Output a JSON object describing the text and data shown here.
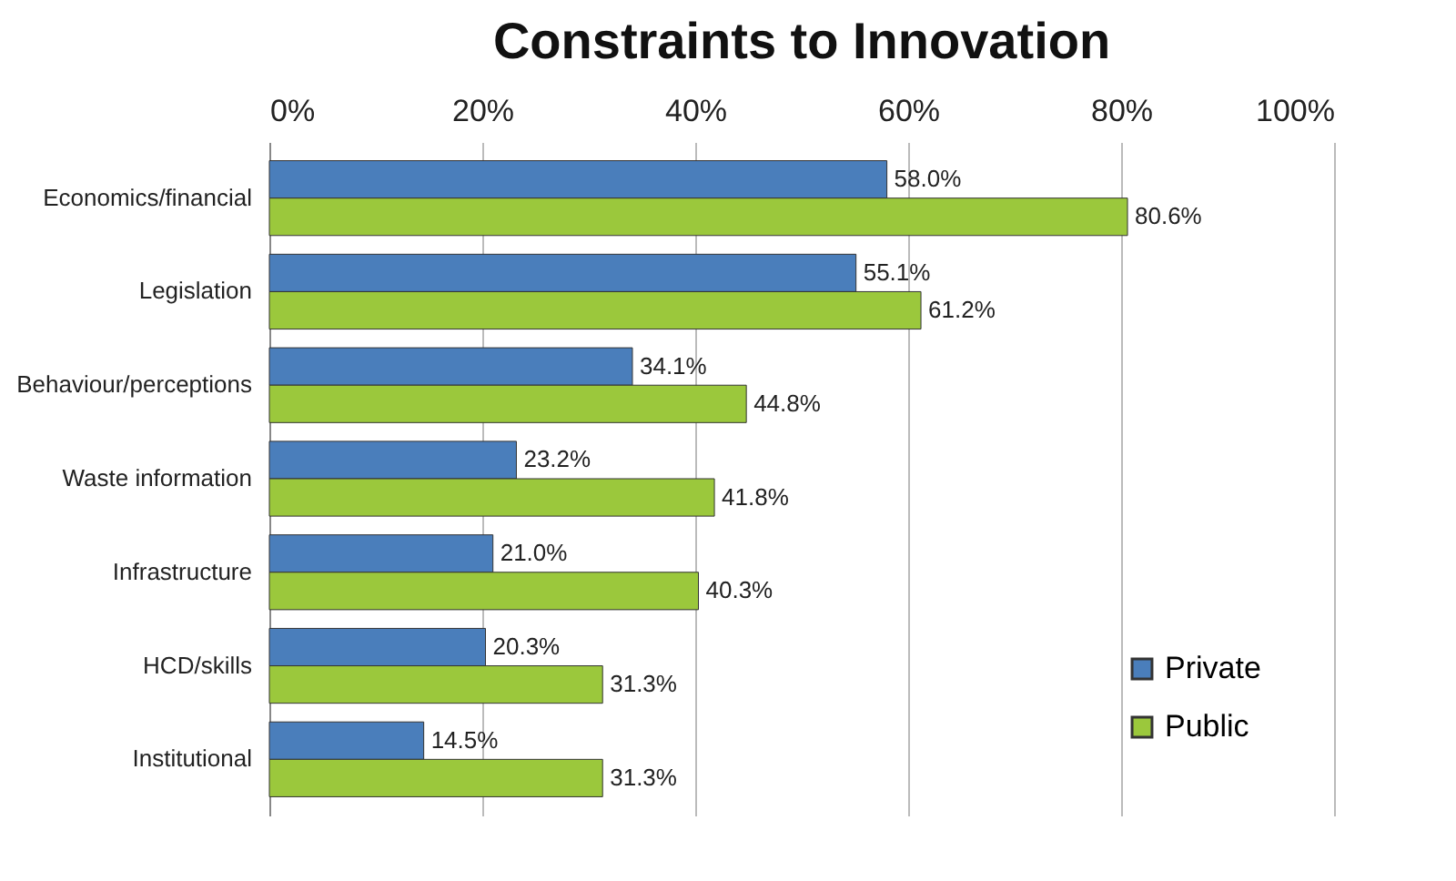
{
  "chart_data": {
    "type": "bar",
    "orientation": "horizontal",
    "title": "Constraints to Innovation",
    "categories": [
      "Economics/financial",
      "Legislation",
      "Behaviour/perceptions",
      "Waste information",
      "Infrastructure",
      "HCD/skills",
      "Institutional"
    ],
    "series": [
      {
        "name": "Private",
        "color": "#4a7ebb",
        "values": [
          58.0,
          55.1,
          34.1,
          23.2,
          21.0,
          20.3,
          14.5
        ],
        "value_labels": [
          "58.0%",
          "55.1%",
          "34.1%",
          "23.2%",
          "21.0%",
          "20.3%",
          "14.5%"
        ]
      },
      {
        "name": "Public",
        "color": "#9bc83c",
        "values": [
          80.6,
          61.2,
          44.8,
          41.8,
          40.3,
          31.3,
          31.3
        ],
        "value_labels": [
          "80.6%",
          "61.2%",
          "44.8%",
          "41.8%",
          "40.3%",
          "31.3%",
          "31.3%"
        ]
      }
    ],
    "xlim": [
      0,
      100
    ],
    "xticks": [
      {
        "value": 0,
        "label": "0%"
      },
      {
        "value": 20,
        "label": "20%"
      },
      {
        "value": 40,
        "label": "40%"
      },
      {
        "value": 60,
        "label": "60%"
      },
      {
        "value": 80,
        "label": "80%"
      },
      {
        "value": 100,
        "label": "100%"
      }
    ],
    "grid": "x",
    "legend": "bottom right"
  }
}
